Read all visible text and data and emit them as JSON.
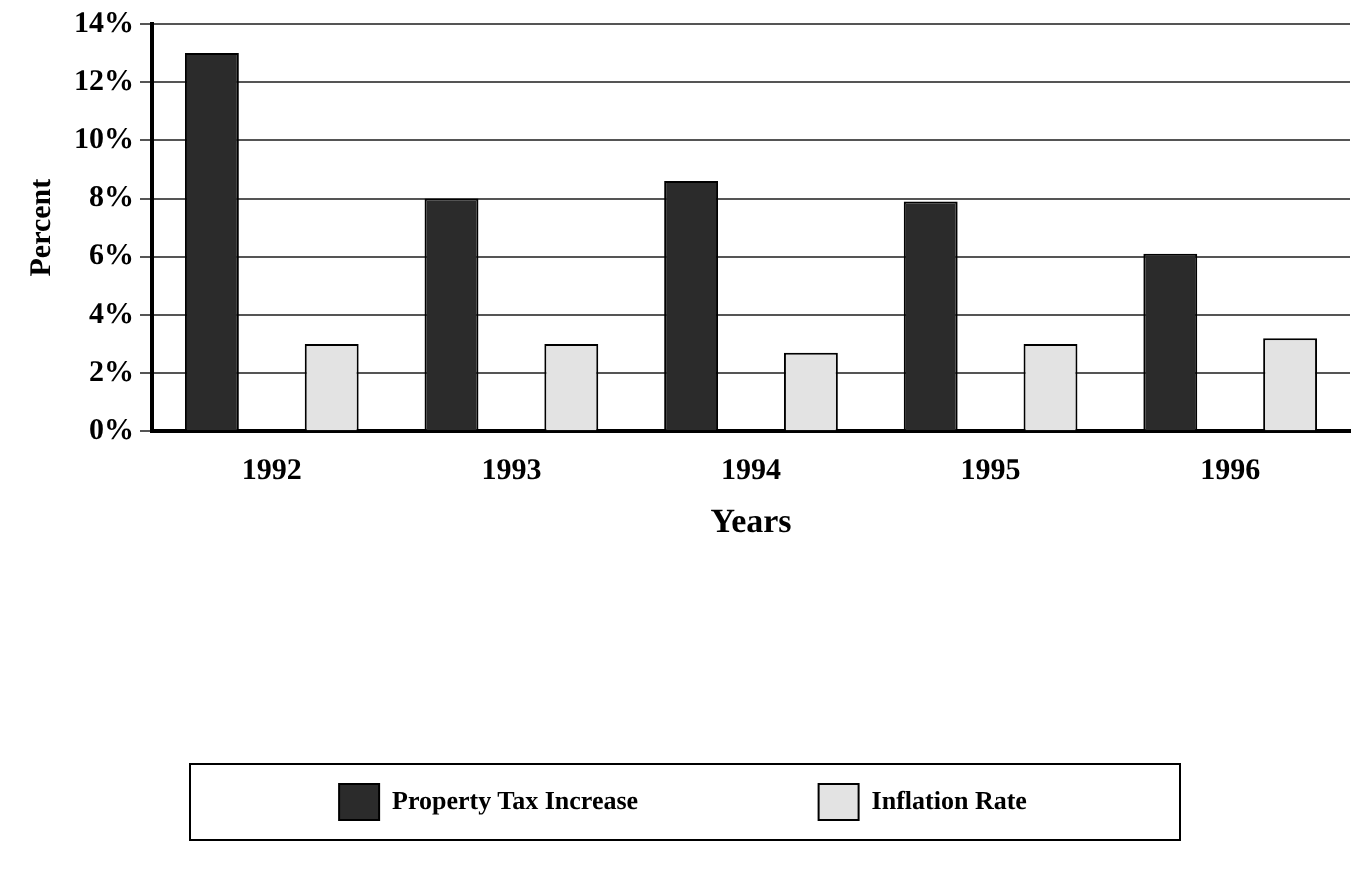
{
  "chart_data": {
    "type": "bar",
    "xlabel": "Years",
    "ylabel": "Percent",
    "categories": [
      "1992",
      "1993",
      "1994",
      "1995",
      "1996"
    ],
    "series": [
      {
        "name": "Property Tax Increase",
        "color": "#2b2b2b",
        "values": [
          13.0,
          8.0,
          8.6,
          7.9,
          6.1
        ]
      },
      {
        "name": "Inflation Rate",
        "color": "#e3e3e3",
        "values": [
          3.0,
          3.0,
          2.7,
          3.0,
          3.2
        ]
      }
    ],
    "ylim": [
      0,
      14
    ],
    "yticks": [
      {
        "value": 0,
        "label": "0%"
      },
      {
        "value": 2,
        "label": "2%"
      },
      {
        "value": 4,
        "label": "4%"
      },
      {
        "value": 6,
        "label": "6%"
      },
      {
        "value": 8,
        "label": "8%"
      },
      {
        "value": 10,
        "label": "10%"
      },
      {
        "value": 12,
        "label": "12%"
      },
      {
        "value": 14,
        "label": "14%"
      }
    ],
    "grid": "y",
    "legend": "bottom"
  }
}
